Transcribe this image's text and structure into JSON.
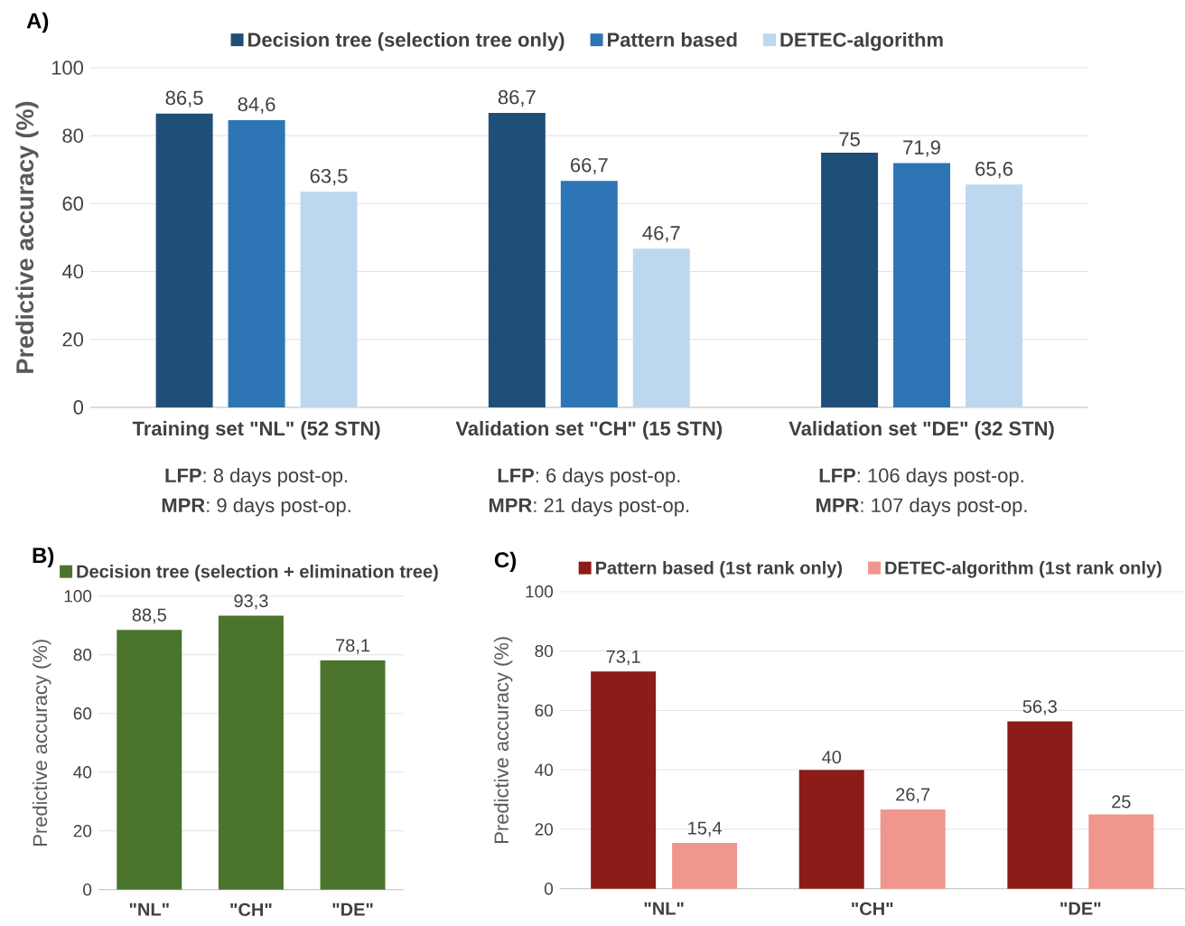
{
  "chart_data": [
    {
      "type": "bar",
      "title": "A)",
      "ylabel": "Predictive accuracy (%)",
      "categories": [
        "Training set \"NL\" (52 STN)",
        "Validation set \"CH\" (15 STN)",
        "Validation set \"DE\" (32 STN)"
      ],
      "series": [
        {
          "name": "Decision tree (selection tree only)",
          "color": "#1f4e79",
          "values": [
            86.5,
            86.7,
            75
          ],
          "value_labels": [
            "86,5",
            "86,7",
            "75"
          ]
        },
        {
          "name": "Pattern based",
          "color": "#2e75b6",
          "values": [
            84.6,
            66.7,
            71.9
          ],
          "value_labels": [
            "84,6",
            "66,7",
            "71,9"
          ]
        },
        {
          "name": "DETEC-algorithm",
          "color": "#bdd7ee",
          "values": [
            63.5,
            46.7,
            65.6
          ],
          "value_labels": [
            "63,5",
            "46,7",
            "65,6"
          ]
        }
      ],
      "ylim": [
        0,
        100
      ],
      "yticks": [
        0,
        20,
        40,
        60,
        80,
        100
      ],
      "grid": "y",
      "legend": "top",
      "annotations": [
        "**LFP**: 8 days post-op.",
        "**MPR**: 9 days post-op.",
        "**LFP**: 6 days post-op.",
        "**MPR**: 21 days post-op.",
        "**LFP**: 106 days post-op.",
        "**MPR**: 107 days post-op."
      ]
    },
    {
      "type": "bar",
      "title": "B)",
      "ylabel": "Predictive accuracy (%)",
      "categories": [
        "\"NL\"",
        "\"CH\"",
        "\"DE\""
      ],
      "series": [
        {
          "name": "Decision tree (selection + elimination tree)",
          "color": "#4b752c",
          "values": [
            88.5,
            93.3,
            78.1
          ],
          "value_labels": [
            "88,5",
            "93,3",
            "78,1"
          ]
        }
      ],
      "ylim": [
        0,
        100
      ],
      "yticks": [
        0,
        20,
        40,
        60,
        80,
        100
      ],
      "grid": "y",
      "legend": "top"
    },
    {
      "type": "bar",
      "title": "C)",
      "ylabel": "Predictive accuracy (%)",
      "categories": [
        "\"NL\"",
        "\"CH\"",
        "\"DE\""
      ],
      "series": [
        {
          "name": "Pattern based (1st rank only)",
          "color": "#8b1c17",
          "values": [
            73.1,
            40,
            56.3
          ],
          "value_labels": [
            "73,1",
            "40",
            "56,3"
          ]
        },
        {
          "name": "DETEC-algorithm (1st rank only)",
          "color": "#f0968c",
          "values": [
            15.4,
            26.7,
            25
          ],
          "value_labels": [
            "15,4",
            "26,7",
            "25"
          ]
        }
      ],
      "ylim": [
        0,
        100
      ],
      "yticks": [
        0,
        20,
        40,
        60,
        80,
        100
      ],
      "grid": "y",
      "legend": "top"
    }
  ]
}
